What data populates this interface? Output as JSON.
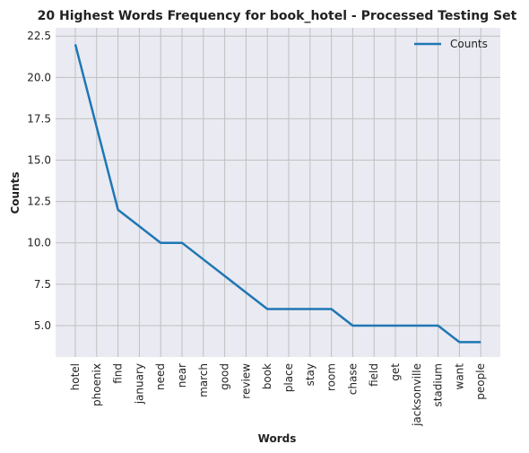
{
  "chart_data": {
    "type": "line",
    "title": "20 Highest Words Frequency for book_hotel - Processed Testing Set",
    "xlabel": "Words",
    "ylabel": "Counts",
    "categories": [
      "hotel",
      "phoenix",
      "find",
      "january",
      "need",
      "near",
      "march",
      "good",
      "review",
      "book",
      "place",
      "stay",
      "room",
      "chase",
      "field",
      "get",
      "jacksonville",
      "stadium",
      "want",
      "people"
    ],
    "series": [
      {
        "name": "Counts",
        "values": [
          22,
          17,
          12,
          11,
          10,
          10,
          9,
          8,
          7,
          6,
          6,
          6,
          6,
          5,
          5,
          5,
          5,
          5,
          4,
          4
        ]
      }
    ],
    "ylim": [
      3.1,
      23.0
    ],
    "yticks": [
      5.0,
      7.5,
      10.0,
      12.5,
      15.0,
      17.5,
      20.0,
      22.5
    ],
    "ytick_labels": [
      "5.0",
      "7.5",
      "10.0",
      "12.5",
      "15.0",
      "17.5",
      "20.0",
      "22.5"
    ],
    "grid": true,
    "legend_position": "top-right",
    "colors": {
      "line": "#1f77b4",
      "plot_bg": "#eaeaf2",
      "grid": "#c0c0c0"
    }
  }
}
